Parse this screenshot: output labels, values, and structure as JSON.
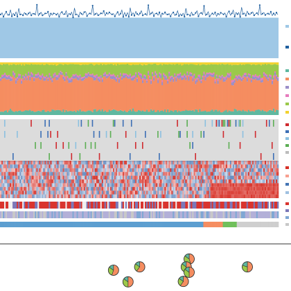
{
  "chart_data": [
    {
      "type": "area",
      "n_samples": 200,
      "ylim": [
        0,
        1.3
      ],
      "series": [
        {
          "color": "#9fc8e6",
          "values": [
            1.0
          ]
        },
        {
          "color": "#1f5f9e",
          "marker": "point",
          "values": [
            1.08,
            1.12,
            1.04,
            1.1,
            1.15,
            1.06,
            1.09,
            1.18,
            1.03,
            1.11,
            1.07,
            1.13,
            1.02,
            1.25,
            1.08,
            1.1,
            1.05,
            1.14,
            1.09,
            1.06,
            1.12,
            1.16,
            1.04,
            1.09,
            1.11,
            1.07,
            1.3,
            1.06,
            1.1,
            1.13,
            1.05,
            1.09,
            1.12,
            1.08,
            1.15,
            1.03,
            1.1,
            1.07,
            1.12,
            1.09
          ]
        }
      ]
    },
    {
      "type": "bar",
      "stacked": true,
      "normalized": true,
      "n_samples": 200,
      "components": [
        {
          "color": "#5fb8a0",
          "share": 0.08
        },
        {
          "color": "#f58d60",
          "share": 0.6
        },
        {
          "color": "#9b8fc9",
          "share": 0.05
        },
        {
          "color": "#e67bbd",
          "share": 0.03
        },
        {
          "color": "#9bc94a",
          "share": 0.2
        },
        {
          "color": "#f2d230",
          "share": 0.04
        }
      ]
    },
    {
      "type": "heatmap",
      "rows": 4,
      "n_samples": 200,
      "background": "#dcdcdc",
      "colors": [
        "#cf2a2f",
        "#3d6fb5",
        "#8cc0e0",
        "#5cae54",
        "#bcbcbc"
      ]
    },
    {
      "type": "heatmap",
      "rows": 10,
      "n_samples": 200,
      "scale": "diverging",
      "colors": [
        "#d73027",
        "#f7f7f7",
        "#4575b4"
      ]
    },
    {
      "type": "heatmap",
      "rows": 3,
      "n_samples": 200,
      "tracks": [
        {
          "colors": [
            "#d9342e",
            "#7b78b9",
            "#f0f0f0"
          ]
        },
        {
          "colors": [
            "#b3b0d8",
            "#7fa7d4",
            "#c8c8c8"
          ]
        },
        {
          "colors": [
            "#5c9ed0",
            "#f58d60",
            "#6fbf5a",
            "#cfcfcf"
          ]
        }
      ]
    },
    {
      "type": "pie",
      "points": [
        {
          "x": 0.39,
          "y": 0.5,
          "slices": [
            0.55,
            0.3,
            0.15
          ]
        },
        {
          "x": 0.48,
          "y": 0.58,
          "slices": [
            0.6,
            0.25,
            0.15
          ]
        },
        {
          "x": 0.44,
          "y": 0.22,
          "slices": [
            0.5,
            0.35,
            0.15
          ]
        },
        {
          "x": 0.65,
          "y": 0.77,
          "slices": [
            0.45,
            0.4,
            0.15
          ]
        },
        {
          "x": 0.64,
          "y": 0.58,
          "slices": [
            0.55,
            0.3,
            0.15
          ]
        },
        {
          "x": 0.65,
          "y": 0.45,
          "slices": [
            0.5,
            0.35,
            0.15
          ]
        },
        {
          "x": 0.63,
          "y": 0.23,
          "slices": [
            0.6,
            0.25,
            0.15
          ]
        },
        {
          "x": 0.85,
          "y": 0.58,
          "slices": [
            0.5,
            0.3,
            0.2
          ]
        }
      ],
      "slice_colors": [
        "#f58d60",
        "#9bc94a",
        "#5fb8a0"
      ]
    }
  ]
}
